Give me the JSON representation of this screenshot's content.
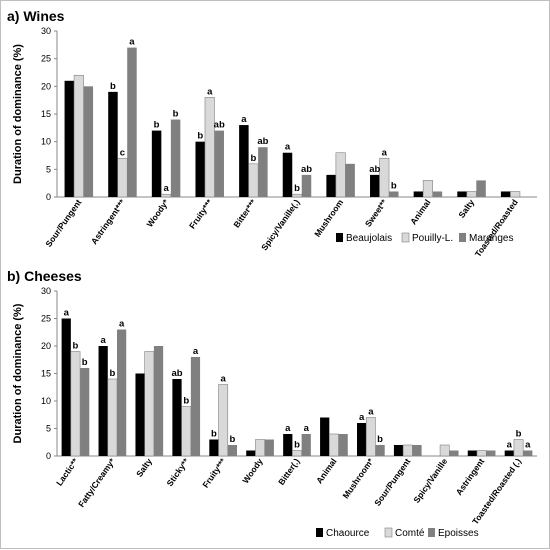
{
  "chart_data": [
    {
      "type": "bar",
      "title": "a)  Wines",
      "ylabel": "Duration of dominance (%)",
      "ylim": [
        0,
        30
      ],
      "yticks": [
        0,
        5,
        10,
        15,
        20,
        25,
        30
      ],
      "grid": false,
      "legend_position": "bottom-right",
      "categories": [
        "Sour/Pungent",
        "Astringent***",
        "Woody*",
        "Fruity***",
        "Bitter***",
        "Spicy/Vanille(.)",
        "Mushroom",
        "Sweet**",
        "Animal",
        "Salty",
        "Toasted/Roasted"
      ],
      "series": [
        {
          "name": "Beaujolais",
          "color": "#000000",
          "values": [
            21,
            19,
            12,
            10,
            13,
            8,
            4,
            4,
            1,
            1,
            1
          ]
        },
        {
          "name": "Pouilly-L.",
          "color": "#d9d9d9",
          "values": [
            22,
            7,
            0.5,
            18,
            6,
            0.5,
            8,
            7,
            3,
            1,
            1
          ]
        },
        {
          "name": "Maranges",
          "color": "#808080",
          "values": [
            20,
            27,
            14,
            12,
            9,
            4,
            6,
            1,
            1,
            3,
            0
          ]
        }
      ],
      "annotations": [
        {
          "category": "Astringent***",
          "labels": [
            "b",
            "c",
            "a"
          ]
        },
        {
          "category": "Woody*",
          "labels": [
            "b",
            "a",
            "b"
          ]
        },
        {
          "category": "Fruity***",
          "labels": [
            "b",
            "a",
            "ab"
          ]
        },
        {
          "category": "Bitter***",
          "labels": [
            "a",
            "b",
            "ab"
          ]
        },
        {
          "category": "Spicy/Vanille(.)",
          "labels": [
            "a",
            "b",
            "ab"
          ]
        },
        {
          "category": "Sweet**",
          "labels": [
            "ab",
            "a",
            "b"
          ]
        }
      ]
    },
    {
      "type": "bar",
      "title": "b)  Cheeses",
      "ylabel": "Duration of dominance (%)",
      "ylim": [
        0,
        30
      ],
      "yticks": [
        0,
        5,
        10,
        15,
        20,
        25,
        30
      ],
      "grid": false,
      "legend_position": "bottom-right",
      "categories": [
        "Lactic**",
        "Fatty/Creamy*",
        "Salty",
        "Sticky**",
        "Fruity***",
        "Woody",
        "Bitter(.)",
        "Animal",
        "Mushroom*",
        "Sour/Pungent",
        "Spicy/Vanille",
        "Astringent",
        "Toasted/Roasted (.)"
      ],
      "series": [
        {
          "name": "Chaource",
          "color": "#000000",
          "values": [
            25,
            20,
            15,
            14,
            3,
            1,
            4,
            7,
            6,
            2,
            0,
            1,
            1
          ]
        },
        {
          "name": "Comté",
          "color": "#d9d9d9",
          "values": [
            19,
            14,
            19,
            9,
            13,
            3,
            1,
            4,
            7,
            2,
            2,
            1,
            3
          ]
        },
        {
          "name": "Epoisses",
          "color": "#808080",
          "values": [
            16,
            23,
            20,
            18,
            2,
            3,
            4,
            4,
            2,
            2,
            1,
            1,
            1
          ]
        }
      ],
      "annotations": [
        {
          "category": "Lactic**",
          "labels": [
            "a",
            "b",
            "b"
          ]
        },
        {
          "category": "Fatty/Creamy*",
          "labels": [
            "a",
            "b",
            "a"
          ]
        },
        {
          "category": "Sticky**",
          "labels": [
            "ab",
            "b",
            "a"
          ]
        },
        {
          "category": "Fruity***",
          "labels": [
            "b",
            "a",
            "b"
          ]
        },
        {
          "category": "Bitter(.)",
          "labels": [
            "a",
            "b",
            "a"
          ]
        },
        {
          "category": "Mushroom*",
          "labels": [
            "a",
            "a",
            "b"
          ]
        },
        {
          "category": "Toasted/Roasted (.)",
          "labels": [
            "a",
            "b",
            "a"
          ]
        }
      ]
    }
  ]
}
